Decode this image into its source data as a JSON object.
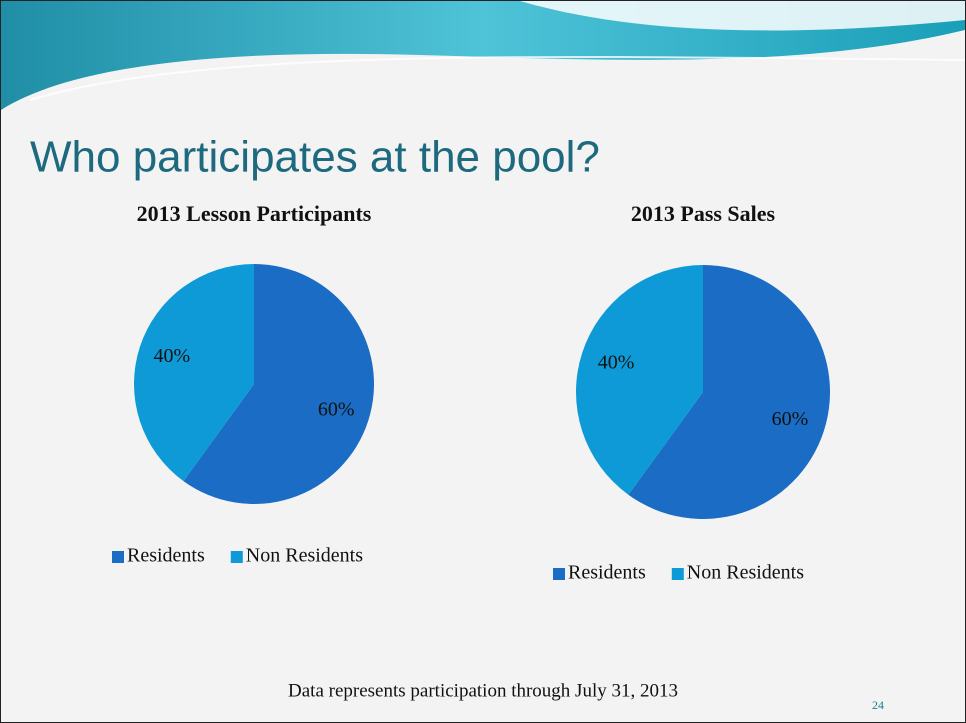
{
  "title": "Who participates at the pool?",
  "chart_data": [
    {
      "type": "pie",
      "title": "2013 Lesson Participants",
      "categories": [
        "Residents",
        "Non Residents"
      ],
      "values": [
        60,
        40
      ],
      "value_labels": [
        "60%",
        "40%"
      ],
      "colors": [
        "#1a6cc4",
        "#0d9ad6"
      ]
    },
    {
      "type": "pie",
      "title": "2013 Pass Sales",
      "categories": [
        "Residents",
        "Non Residents"
      ],
      "values": [
        60,
        40
      ],
      "value_labels": [
        "60%",
        "40%"
      ],
      "colors": [
        "#1a6cc4",
        "#0d9ad6"
      ]
    }
  ],
  "footnote": "Data represents participation through July 31, 2013",
  "page_number": "24"
}
